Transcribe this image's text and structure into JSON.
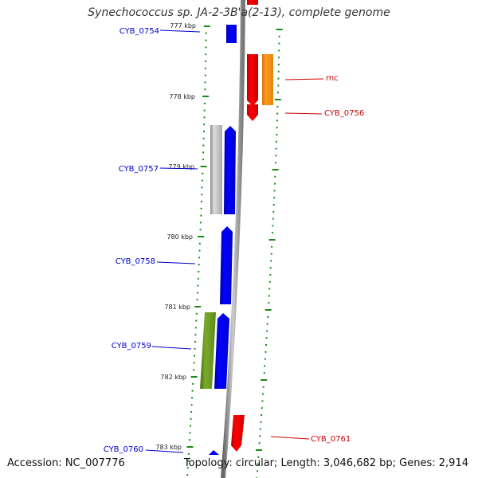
{
  "title": "Synechococcus sp. JA-2-3B'a(2-13), complete genome",
  "accession": "Accession: NC_007776",
  "stats": "Topology: circular; Length: 3,046,682 bp; Genes: 2,914",
  "colors": {
    "backbone": "#8a8a8a",
    "tick": "#1a8a1a",
    "left_label": "#0000cc",
    "right_label": "#cc0000",
    "blue_gene": "#0000ee",
    "red_gene": "#ee0000",
    "orange_gene": "#ee8800",
    "grey_gene": "#bbbbbb",
    "olive_gene": "#5a8a1a"
  },
  "scale": {
    "labels": [
      "777 kbp",
      "778 kbp",
      "779 kbp",
      "780 kbp",
      "781 kbp",
      "782 kbp",
      "783 kbp"
    ]
  },
  "gene_labels": {
    "left": [
      "CYB_0754",
      "CYB_0757",
      "CYB_0758",
      "CYB_0759",
      "CYB_0760"
    ],
    "right": [
      "rnc",
      "CYB_0756",
      "CYB_0761"
    ]
  },
  "genes": [
    {
      "name": "CYB_0754",
      "color": "blue",
      "strand": "minus"
    },
    {
      "name": "rnc",
      "color": "red",
      "strand": "plus"
    },
    {
      "name": "orange-feature",
      "color": "orange",
      "strand": "plus"
    },
    {
      "name": "CYB_0756",
      "color": "red",
      "strand": "plus"
    },
    {
      "name": "grey-feature",
      "color": "grey",
      "strand": "minus"
    },
    {
      "name": "CYB_0757",
      "color": "blue",
      "strand": "minus"
    },
    {
      "name": "CYB_0758",
      "color": "blue",
      "strand": "minus"
    },
    {
      "name": "olive-feature",
      "color": "olive",
      "strand": "minus"
    },
    {
      "name": "CYB_0759",
      "color": "blue",
      "strand": "minus"
    },
    {
      "name": "CYB_0761",
      "color": "red",
      "strand": "plus"
    },
    {
      "name": "CYB_0760",
      "color": "blue",
      "strand": "minus"
    }
  ]
}
